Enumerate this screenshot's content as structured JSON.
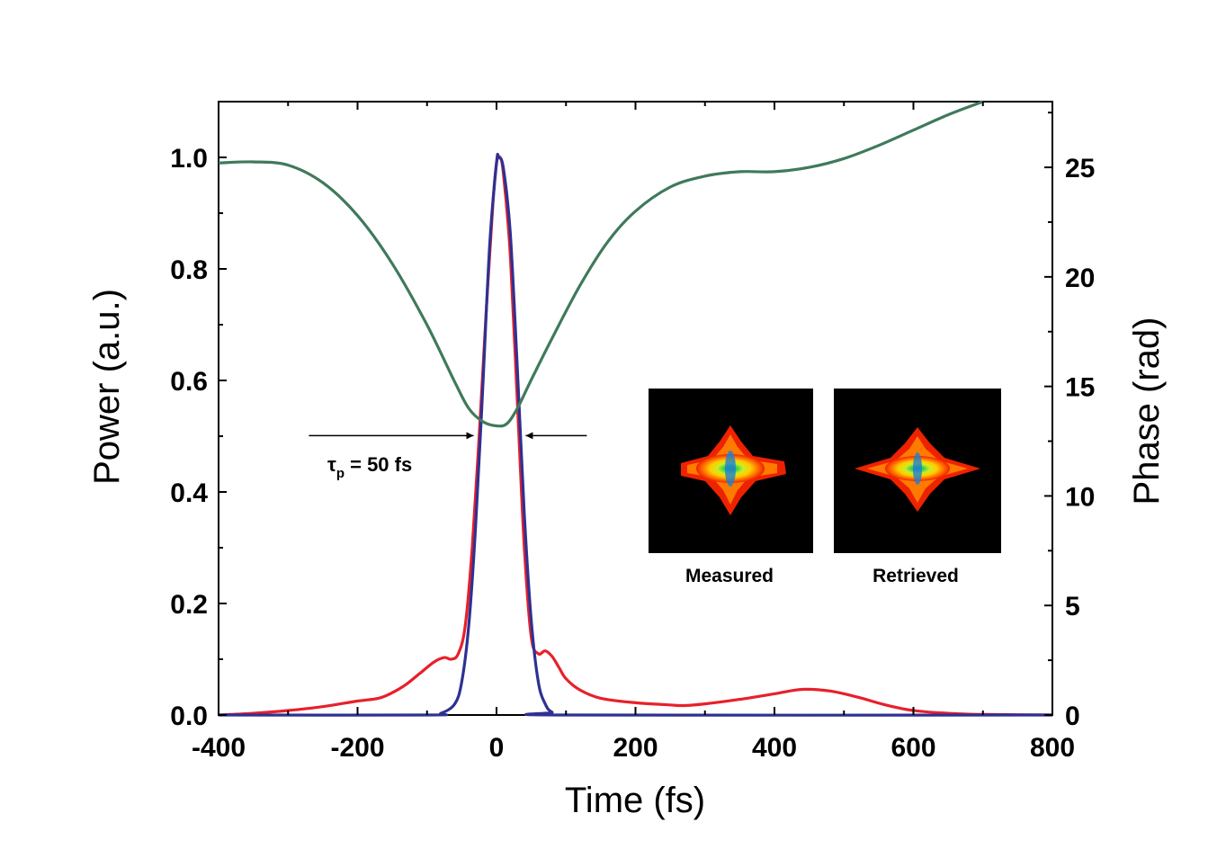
{
  "chart_data": {
    "type": "line",
    "title": "",
    "xlabel": "Time (fs)",
    "ylabel": "Power (a.u.)",
    "ylabel_right": "Phase (rad)",
    "xlim": [
      -400,
      800
    ],
    "ylim": [
      0,
      1.1
    ],
    "ylim_right": [
      0,
      28
    ],
    "x_ticks": [
      "-400",
      "-200",
      "0",
      "200",
      "400",
      "600",
      "800"
    ],
    "y_ticks": [
      "0.0",
      "0.2",
      "0.4",
      "0.6",
      "0.8",
      "1.0"
    ],
    "y_ticks_right": [
      "0",
      "5",
      "10",
      "15",
      "20",
      "25"
    ],
    "grid": false,
    "legend": "none",
    "series": [
      {
        "color": "#e8202a",
        "axis": "left",
        "x": [
          -400,
          -350,
          -300,
          -250,
          -200,
          -170,
          -150,
          -130,
          -110,
          -90,
          -75,
          -65,
          -55,
          -45,
          -35,
          -25,
          -15,
          -5,
          0,
          5,
          10,
          20,
          30,
          40,
          50,
          60,
          70,
          80,
          90,
          100,
          120,
          150,
          200,
          250,
          270,
          300,
          350,
          400,
          440,
          480,
          520,
          560,
          600,
          650,
          700,
          800
        ],
        "y": [
          0.0,
          0.003,
          0.008,
          0.015,
          0.025,
          0.03,
          0.04,
          0.055,
          0.075,
          0.095,
          0.103,
          0.1,
          0.11,
          0.16,
          0.3,
          0.5,
          0.72,
          0.92,
          0.99,
          1.0,
          0.97,
          0.82,
          0.56,
          0.3,
          0.14,
          0.11,
          0.115,
          0.105,
          0.085,
          0.065,
          0.045,
          0.03,
          0.022,
          0.018,
          0.017,
          0.02,
          0.028,
          0.038,
          0.046,
          0.043,
          0.032,
          0.018,
          0.008,
          0.003,
          0.001,
          0.0
        ]
      },
      {
        "color": "#2e3192",
        "axis": "left",
        "x": [
          -400,
          -100,
          -80,
          -60,
          -50,
          -40,
          -30,
          -20,
          -10,
          0,
          3,
          10,
          20,
          30,
          40,
          50,
          60,
          70,
          80,
          100,
          800
        ],
        "y": [
          0.0,
          0.0,
          0.003,
          0.02,
          0.06,
          0.16,
          0.34,
          0.58,
          0.84,
          0.99,
          1.0,
          0.98,
          0.86,
          0.62,
          0.36,
          0.17,
          0.06,
          0.02,
          0.005,
          0.0,
          0.0
        ]
      },
      {
        "color": "#3f7a5a",
        "axis": "right",
        "x": [
          -400,
          -350,
          -300,
          -250,
          -200,
          -150,
          -100,
          -60,
          -40,
          -20,
          0,
          15,
          30,
          50,
          80,
          120,
          160,
          200,
          250,
          300,
          350,
          400,
          450,
          500,
          550,
          600,
          650,
          700
        ],
        "y": [
          25.2,
          25.25,
          25.1,
          24.3,
          22.8,
          20.6,
          17.8,
          15.2,
          14.0,
          13.4,
          13.2,
          13.3,
          14.0,
          15.3,
          17.2,
          19.6,
          21.6,
          23.0,
          24.1,
          24.6,
          24.8,
          24.8,
          25.0,
          25.4,
          26.0,
          26.7,
          27.4,
          28.0
        ]
      }
    ],
    "annotations": [
      {
        "text": "τ",
        "subscript": "p",
        "rest": " = 50 fs",
        "x_from": -270,
        "x_to": 130,
        "y": 0.501
      }
    ],
    "insets": [
      {
        "caption": "Measured"
      },
      {
        "caption": "Retrieved"
      }
    ]
  }
}
